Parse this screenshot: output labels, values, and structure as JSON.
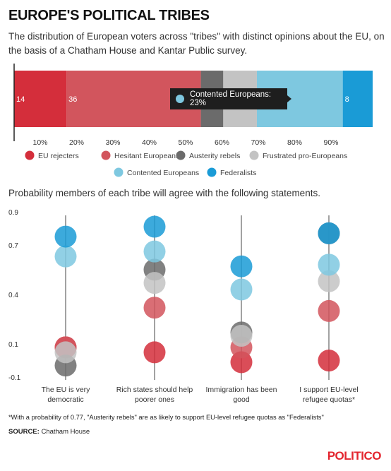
{
  "header": {
    "title": "EUROPE'S POLITICAL TRIBES",
    "subtitle": "The distribution of European voters across \"tribes\" with distinct opinions about the EU, on the basis of a Chatham House and Kantar Public survey.",
    "section2_title": "Probability members of each tribe will agree with the following statements.",
    "footnote": "*With a probability of 0.77, \"Austerity rebels\" are as likely to support EU-level refugee quotas as \"Federalists\"",
    "source_label": "SOURCE:",
    "source_text": "Chatham House",
    "brand": "POLITICO"
  },
  "tooltip": {
    "label": "Contented Europeans: 23%",
    "color": "#7ec8e0"
  },
  "chart_data": [
    {
      "type": "bar",
      "orientation": "horizontal-stacked",
      "series": [
        {
          "name": "EU rejecters",
          "value": 14,
          "color": "#d42e3b",
          "label": "14"
        },
        {
          "name": "Hesitant Europeans",
          "value": 36,
          "color": "#d2555d",
          "label": "36"
        },
        {
          "name": "Austerity rebels",
          "value": 6,
          "color": "#6b6b6b",
          "label": ""
        },
        {
          "name": "Frustrated pro-Europeans",
          "value": 9,
          "color": "#c3c3c3",
          "label": ""
        },
        {
          "name": "Contented Europeans",
          "value": 23,
          "color": "#7ec8e0",
          "label": ""
        },
        {
          "name": "Federalists",
          "value": 8,
          "color": "#1a9bd6",
          "label": "8"
        }
      ],
      "xticks": [
        "10%",
        "20%",
        "30%",
        "40%",
        "50%",
        "60%",
        "70%",
        "80%",
        "90%"
      ],
      "xlim": [
        0,
        100
      ]
    },
    {
      "type": "scatter",
      "ylim": [
        -0.1,
        0.9
      ],
      "yticks": [
        "0.9",
        "0.7",
        "0.4",
        "0.1",
        "-0.1"
      ],
      "ytick_values": [
        0.9,
        0.7,
        0.4,
        0.1,
        -0.1
      ],
      "categories": [
        {
          "lines": [
            "The EU is very",
            "democratic"
          ]
        },
        {
          "lines": [
            "Rich states should help",
            "poorer ones"
          ]
        },
        {
          "lines": [
            "Immigration has been",
            "good"
          ]
        },
        {
          "lines": [
            "I support EU-level",
            "refugee quotas*"
          ]
        }
      ],
      "series": [
        {
          "name": "EU rejecters",
          "color": "#d42e3b",
          "values": [
            0.08,
            0.05,
            -0.01,
            0.0
          ]
        },
        {
          "name": "Hesitant Europeans",
          "color": "#d2555d",
          "values": [
            0.08,
            0.32,
            0.08,
            0.3
          ]
        },
        {
          "name": "Austerity rebels",
          "color": "#6b6b6b",
          "values": [
            -0.03,
            0.55,
            0.17,
            0.77
          ]
        },
        {
          "name": "Frustrated pro-Europeans",
          "color": "#c3c3c3",
          "values": [
            0.05,
            0.47,
            0.15,
            0.48
          ]
        },
        {
          "name": "Contented Europeans",
          "color": "#7ec8e0",
          "values": [
            0.63,
            0.66,
            0.43,
            0.58
          ]
        },
        {
          "name": "Federalists",
          "color": "#1a9bd6",
          "values": [
            0.75,
            0.81,
            0.57,
            0.77
          ]
        }
      ]
    }
  ]
}
